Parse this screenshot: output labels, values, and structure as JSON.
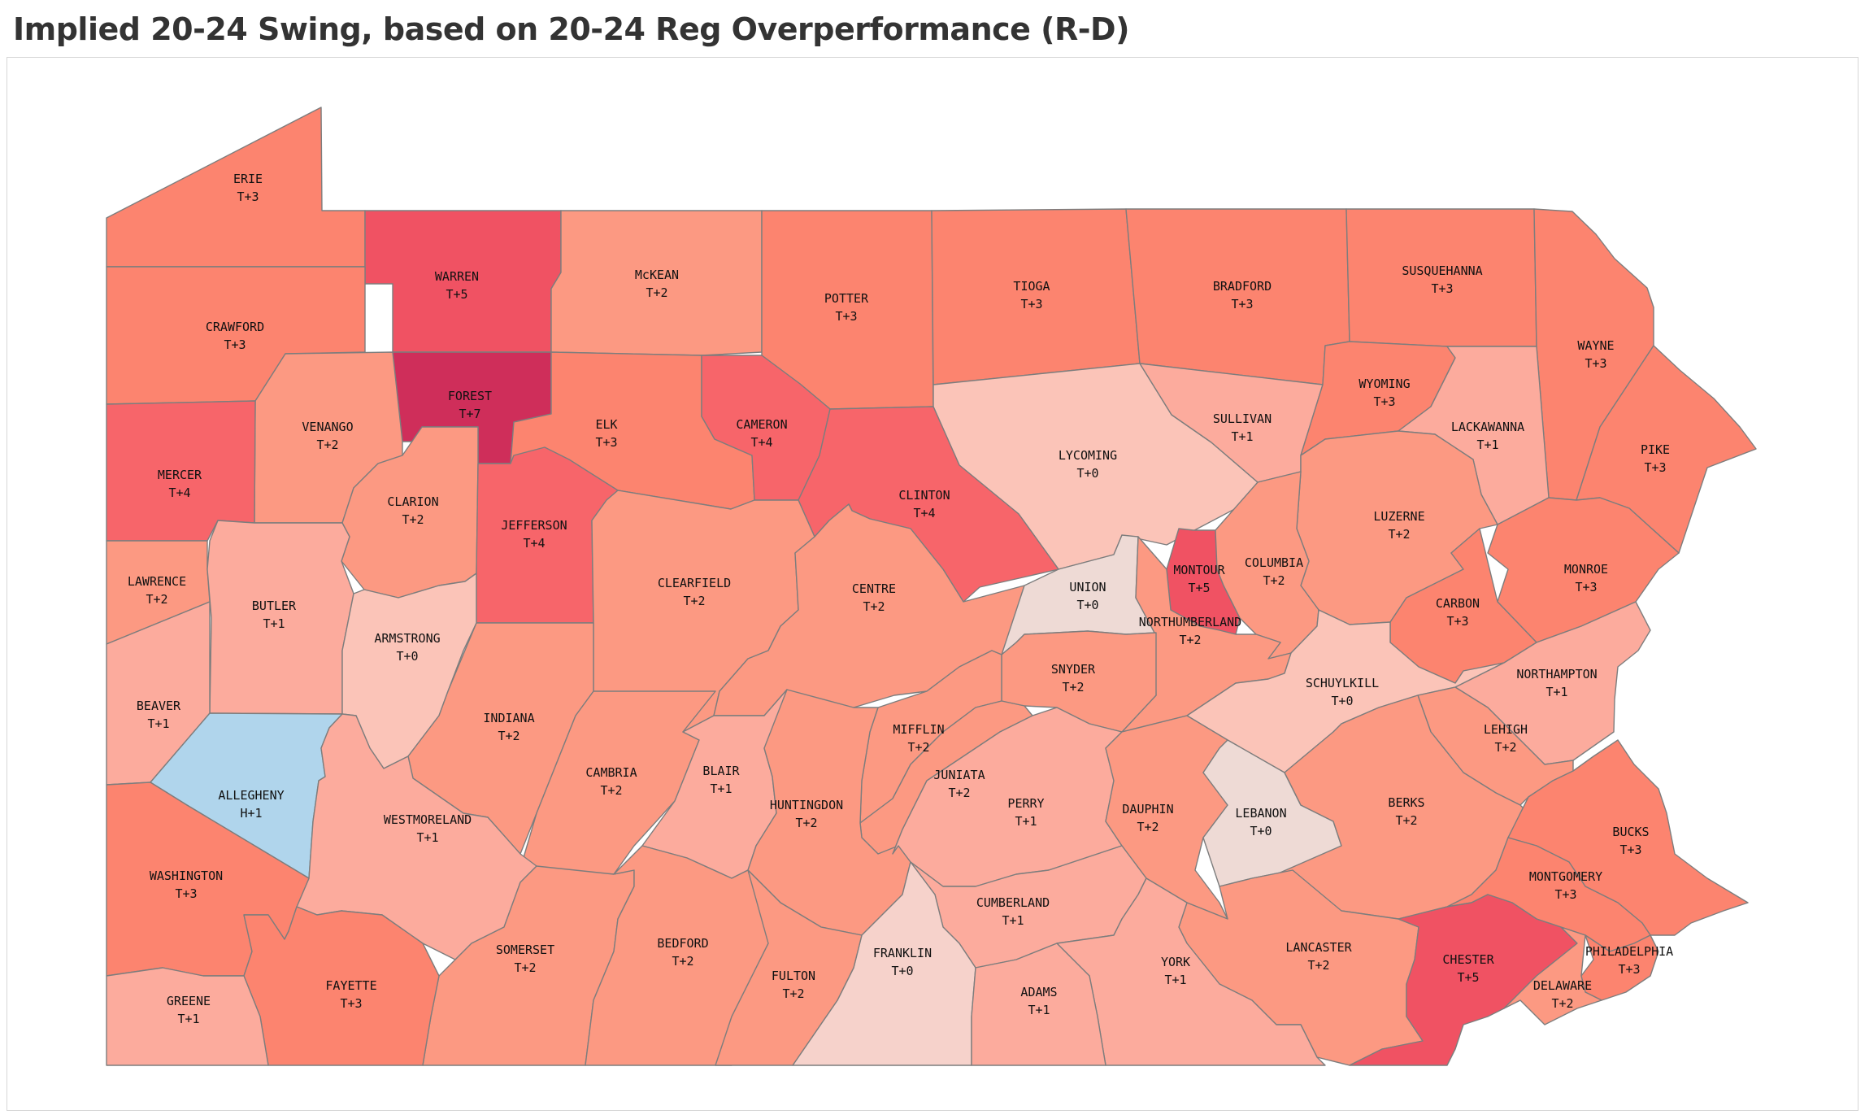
{
  "title": "Implied 20-24 Swing, based on 20-24 Reg Overperformance (R-D)",
  "colors": {
    "H+1": "#b0d5ec",
    "T+0": "#fbc4b8",
    "T+0_light": "#f6d2cb",
    "T+0_pale": "#eedad5",
    "T+1": "#fcab9d",
    "T+2": "#fc9982",
    "T+3": "#fc846f",
    "T+4": "#f7656a",
    "T+5": "#f05263",
    "T+7": "#cf2e5a"
  },
  "counties": [
    {
      "name": "ERIE",
      "value": "T+3"
    },
    {
      "name": "WARREN",
      "value": "T+5"
    },
    {
      "name": "McKEAN",
      "value": "T+2"
    },
    {
      "name": "POTTER",
      "value": "T+3"
    },
    {
      "name": "TIOGA",
      "value": "T+3"
    },
    {
      "name": "BRADFORD",
      "value": "T+3"
    },
    {
      "name": "SUSQUEHANNA",
      "value": "T+3"
    },
    {
      "name": "WAYNE",
      "value": "T+3"
    },
    {
      "name": "CRAWFORD",
      "value": "T+3"
    },
    {
      "name": "FOREST",
      "value": "T+7"
    },
    {
      "name": "VENANGO",
      "value": "T+2"
    },
    {
      "name": "ELK",
      "value": "T+3"
    },
    {
      "name": "CAMERON",
      "value": "T+4"
    },
    {
      "name": "LYCOMING",
      "value": "T+0"
    },
    {
      "name": "SULLIVAN",
      "value": "T+1"
    },
    {
      "name": "WYOMING",
      "value": "T+3"
    },
    {
      "name": "LACKAWANNA",
      "value": "T+1"
    },
    {
      "name": "PIKE",
      "value": "T+3"
    },
    {
      "name": "MERCER",
      "value": "T+4"
    },
    {
      "name": "CLARION",
      "value": "T+2"
    },
    {
      "name": "JEFFERSON",
      "value": "T+4"
    },
    {
      "name": "CLINTON",
      "value": "T+4"
    },
    {
      "name": "LUZERNE",
      "value": "T+2"
    },
    {
      "name": "LAWRENCE",
      "value": "T+2"
    },
    {
      "name": "BUTLER",
      "value": "T+1"
    },
    {
      "name": "CLEARFIELD",
      "value": "T+2"
    },
    {
      "name": "CENTRE",
      "value": "T+2"
    },
    {
      "name": "UNION",
      "value": "T+0"
    },
    {
      "name": "MONTOUR",
      "value": "T+5"
    },
    {
      "name": "COLUMBIA",
      "value": "T+2"
    },
    {
      "name": "MONROE",
      "value": "T+3"
    },
    {
      "name": "CARBON",
      "value": "T+3"
    },
    {
      "name": "ARMSTRONG",
      "value": "T+0"
    },
    {
      "name": "NORTHUMBERLAND",
      "value": "T+2"
    },
    {
      "name": "SCHUYLKILL",
      "value": "T+0"
    },
    {
      "name": "NORTHAMPTON",
      "value": "T+1"
    },
    {
      "name": "BEAVER",
      "value": "T+1"
    },
    {
      "name": "SNYDER",
      "value": "T+2"
    },
    {
      "name": "INDIANA",
      "value": "T+2"
    },
    {
      "name": "MIFFLIN",
      "value": "T+2"
    },
    {
      "name": "LEHIGH",
      "value": "T+2"
    },
    {
      "name": "CAMBRIA",
      "value": "T+2"
    },
    {
      "name": "BLAIR",
      "value": "T+1"
    },
    {
      "name": "JUNIATA",
      "value": "T+2"
    },
    {
      "name": "ALLEGHENY",
      "value": "H+1"
    },
    {
      "name": "HUNTINGDON",
      "value": "T+2"
    },
    {
      "name": "PERRY",
      "value": "T+1"
    },
    {
      "name": "DAUPHIN",
      "value": "T+2"
    },
    {
      "name": "LEBANON",
      "value": "T+0"
    },
    {
      "name": "BERKS",
      "value": "T+2"
    },
    {
      "name": "BUCKS",
      "value": "T+3"
    },
    {
      "name": "WESTMORELAND",
      "value": "T+1"
    },
    {
      "name": "WASHINGTON",
      "value": "T+3"
    },
    {
      "name": "MONTGOMERY",
      "value": "T+3"
    },
    {
      "name": "CUMBERLAND",
      "value": "T+1"
    },
    {
      "name": "SOMERSET",
      "value": "T+2"
    },
    {
      "name": "BEDFORD",
      "value": "T+2"
    },
    {
      "name": "FRANKLIN",
      "value": "T+0"
    },
    {
      "name": "LANCASTER",
      "value": "T+2"
    },
    {
      "name": "PHILADELPHIA",
      "value": "T+3"
    },
    {
      "name": "FAYETTE",
      "value": "T+3"
    },
    {
      "name": "FULTON",
      "value": "T+2"
    },
    {
      "name": "YORK",
      "value": "T+1"
    },
    {
      "name": "CHESTER",
      "value": "T+5"
    },
    {
      "name": "DELAWARE",
      "value": "T+2"
    },
    {
      "name": "GREENE",
      "value": "T+1"
    },
    {
      "name": "ADAMS",
      "value": "T+1"
    }
  ]
}
